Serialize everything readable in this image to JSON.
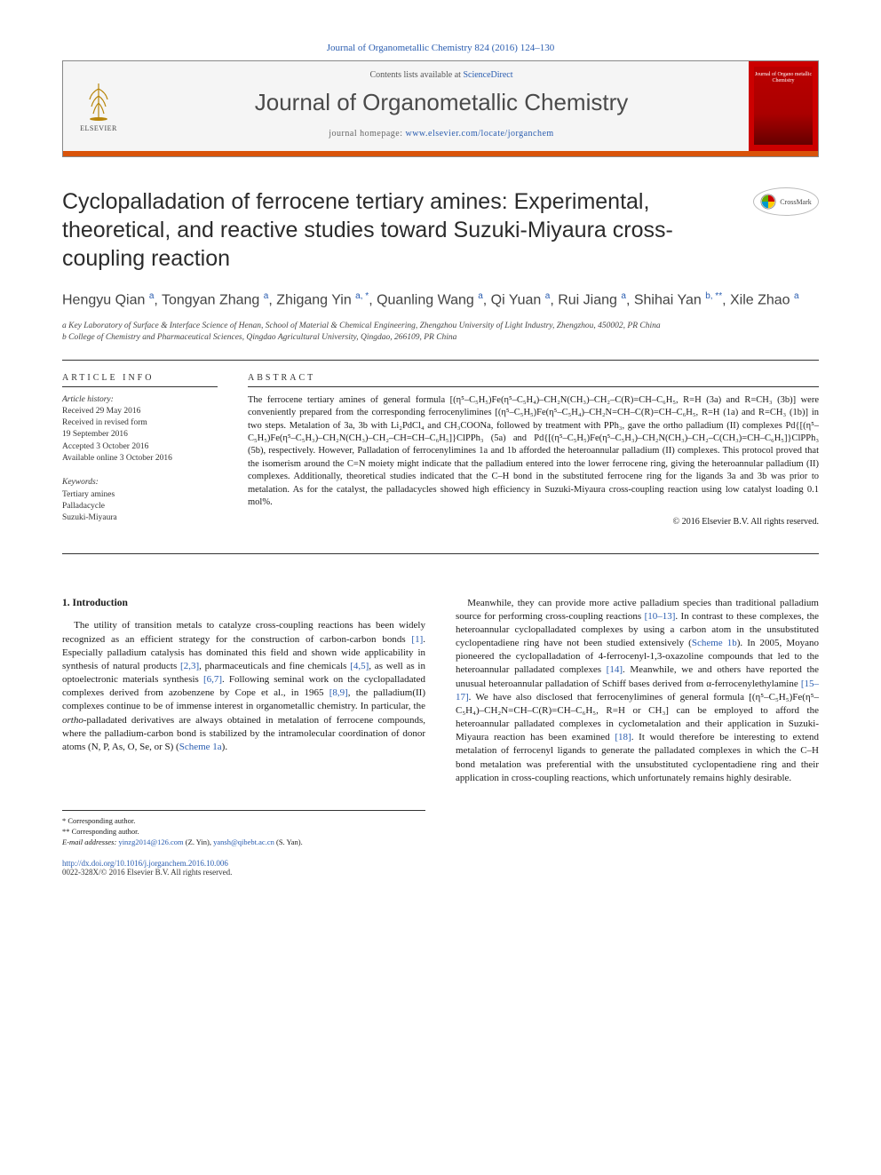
{
  "citation": "Journal of Organometallic Chemistry 824 (2016) 124–130",
  "header": {
    "contents_prefix": "Contents lists available at ",
    "contents_link": "ScienceDirect",
    "journal_name": "Journal of Organometallic Chemistry",
    "homepage_prefix": "journal homepage: ",
    "homepage_link": "www.elsevier.com/locate/jorganchem",
    "publisher": "ELSEVIER",
    "cover_text": "Journal of Organo metallic Chemistry"
  },
  "crossmark": "CrossMark",
  "title": "Cyclopalladation of ferrocene tertiary amines: Experimental, theoretical, and reactive studies toward Suzuki-Miyaura cross-coupling reaction",
  "authors_html": "Hengyu Qian <sup>a</sup>, Tongyan Zhang <sup>a</sup>, Zhigang Yin <sup>a, *</sup>, Quanling Wang <sup>a</sup>, Qi Yuan <sup>a</sup>, Rui Jiang <sup>a</sup>, Shihai Yan <sup>b, **</sup>, Xile Zhao <sup>a</sup>",
  "affiliations": {
    "a": "a Key Laboratory of Surface & Interface Science of Henan, School of Material & Chemical Engineering, Zhengzhou University of Light Industry, Zhengzhou, 450002, PR China",
    "b": "b College of Chemistry and Pharmaceutical Sciences, Qingdao Agricultural University, Qingdao, 266109, PR China"
  },
  "article_info": {
    "heading": "ARTICLE INFO",
    "history_label": "Article history:",
    "history": [
      "Received 29 May 2016",
      "Received in revised form",
      "19 September 2016",
      "Accepted 3 October 2016",
      "Available online 3 October 2016"
    ],
    "keywords_label": "Keywords:",
    "keywords": [
      "Tertiary amines",
      "Palladacycle",
      "Suzuki-Miyaura"
    ]
  },
  "abstract": {
    "heading": "ABSTRACT",
    "text": "The ferrocene tertiary amines of general formula [(η⁵–C₅H₅)Fe(η⁵–C₅H₄)–CH₂N(CH₃)–CH₂–C(R)=CH–C₆H₅, R=H (3a) and R=CH₃ (3b)] were conveniently prepared from the corresponding ferrocenylimines [(η⁵–C₅H₅)Fe(η⁵–C₅H₄)–CH₂N=CH–C(R)=CH–C₆H₅, R=H (1a) and R=CH₃ (1b)] in two steps. Metalation of 3a, 3b with Li₂PdCl₄ and CH₃COONa, followed by treatment with PPh₃, gave the ortho palladium (II) complexes Pd{[(η⁵–C₅H₅)Fe(η⁵–C₅H₃)–CH₂N(CH₃)–CH₂–CH=CH–C₆H₅]}ClPPh₃ (5a) and Pd{[(η⁵–C₅H₅)Fe(η⁵–C₅H₃)–CH₂N(CH₃)–CH₂–C(CH₃)=CH–C₆H₅]}ClPPh₃ (5b), respectively. However, Palladation of ferrocenylimines 1a and 1b afforded the heteroannular palladium (II) complexes. This protocol proved that the isomerism around the C=N moiety might indicate that the palladium entered into the lower ferrocene ring, giving the heteroannular palladium (II) complexes. Additionally, theoretical studies indicated that the C–H bond in the substituted ferrocene ring for the ligands 3a and 3b was prior to metalation. As for the catalyst, the palladacycles showed high efficiency in Suzuki-Miyaura cross-coupling reaction using low catalyst loading 0.1 mol%.",
    "copyright": "© 2016 Elsevier B.V. All rights reserved."
  },
  "sections": {
    "intro_heading": "1. Introduction",
    "intro_col1": "The utility of transition metals to catalyze cross-coupling reactions has been widely recognized as an efficient strategy for the construction of carbon-carbon bonds [1]. Especially palladium catalysis has dominated this field and shown wide applicability in synthesis of natural products [2,3], pharmaceuticals and fine chemicals [4,5], as well as in optoelectronic materials synthesis [6,7]. Following seminal work on the cyclopalladated complexes derived from azobenzene by Cope et al., in 1965 [8,9], the palladium(II) complexes continue to be of immense interest in organometallic chemistry. In particular, the ortho-palladated derivatives are always obtained in metalation of ferrocene compounds, where the palladium-carbon bond is stabilized by the intramolecular coordination of donor atoms (N, P, As, O, Se, or S) (Scheme 1a).",
    "intro_col2": "Meanwhile, they can provide more active palladium species than traditional palladium source for performing cross-coupling reactions [10–13]. In contrast to these complexes, the heteroannular cyclopalladated complexes by using a carbon atom in the unsubstituted cyclopentadiene ring have not been studied extensively (Scheme 1b). In 2005, Moyano pioneered the cyclopalladation of 4-ferrocenyl-1,3-oxazoline compounds that led to the heteroannular palladated complexes [14]. Meanwhile, we and others have reported the unusual heteroannular palladation of Schiff bases derived from α-ferrocenylethylamine [15–17]. We have also disclosed that ferrocenylimines of general formula [(η⁵–C₅H₅)Fe(η⁵–C₅H₄)–CH₂N=CH–C(R)=CH–C₆H₅, R=H or CH₃] can be employed to afford the heteroannular palladated complexes in cyclometalation and their application in Suzuki-Miyaura reaction has been examined [18]. It would therefore be interesting to extend metalation of ferrocenyl ligands to generate the palladated complexes in which the C–H bond metalation was preferential with the unsubstituted cyclopentadiene ring and their application in cross-coupling reactions, which unfortunately remains highly desirable."
  },
  "footnotes": {
    "corr1": "* Corresponding author.",
    "corr2": "** Corresponding author.",
    "email_label": "E-mail addresses: ",
    "email1": "yinzg2014@126.com",
    "email1_name": " (Z. Yin), ",
    "email2": "yansh@qibebt.ac.cn",
    "email2_name": " (S. Yan)."
  },
  "doi": {
    "url": "http://dx.doi.org/10.1016/j.jorganchem.2016.10.006",
    "issn": "0022-328X/© 2016 Elsevier B.V. All rights reserved."
  },
  "colors": {
    "link": "#2a5db0",
    "bar": "#d9530a",
    "cover": "#b00000"
  }
}
